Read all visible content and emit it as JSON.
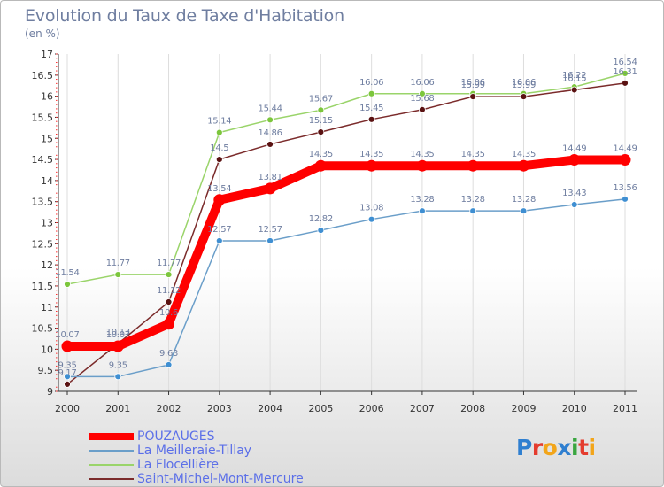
{
  "header": {
    "title": "Evolution du Taux de Taxe d'Habitation",
    "unit": "(en %)"
  },
  "logo": {
    "text": "Proxiti"
  },
  "colors": {
    "axis": "#333333",
    "grid": "#dddddd",
    "text": "#5b6fe8"
  },
  "chart_data": {
    "type": "line",
    "title": "Evolution du Taux de Taxe d'Habitation",
    "ylabel": "(en %)",
    "xlabel": "",
    "x": [
      "2000",
      "2001",
      "2002",
      "2003",
      "2004",
      "2005",
      "2006",
      "2007",
      "2008",
      "2009",
      "2010",
      "2011"
    ],
    "ylim": [
      9,
      17
    ],
    "yticks": [
      "9",
      "9.5",
      "10",
      "10.5",
      "11",
      "11.5",
      "12",
      "12.5",
      "13",
      "13.5",
      "14",
      "14.5",
      "15",
      "15.5",
      "16",
      "16.5",
      "17"
    ],
    "grid": "vertical",
    "legend_position": "bottom-left",
    "series": [
      {
        "name": "POUZAUGES",
        "color": "#ff0000",
        "bold": true,
        "values": [
          10.07,
          10.07,
          10.6,
          13.54,
          13.81,
          14.35,
          14.35,
          14.35,
          14.35,
          14.35,
          14.49,
          14.49
        ],
        "labels": [
          "10.07",
          "10.07",
          "10.6",
          "13.54",
          "13.81",
          "14.35",
          "14.35",
          "14.35",
          "14.35",
          "14.35",
          "14.49",
          "14.49"
        ]
      },
      {
        "name": "La Meilleraie-Tillay",
        "color": "#6a9ec9",
        "marker": "#3f8fd2",
        "values": [
          9.35,
          9.35,
          9.63,
          12.57,
          12.57,
          12.82,
          13.08,
          13.28,
          13.28,
          13.28,
          13.43,
          13.56
        ],
        "labels": [
          "9.35",
          "9.35",
          "9.63",
          "12.57",
          "12.57",
          "12.82",
          "13.08",
          "13.28",
          "13.28",
          "13.28",
          "13.43",
          "13.56"
        ]
      },
      {
        "name": "La Flocellière",
        "color": "#9ad46a",
        "marker": "#7cc63c",
        "values": [
          11.54,
          11.77,
          11.77,
          15.14,
          15.44,
          15.67,
          16.06,
          16.06,
          16.06,
          16.06,
          16.22,
          16.54
        ],
        "labels": [
          "11.54",
          "11.77",
          "11.77",
          "15.14",
          "15.44",
          "15.67",
          "16.06",
          "16.06",
          "16.06",
          "16.06",
          "16.22",
          "16.54"
        ]
      },
      {
        "name": "Saint-Michel-Mont-Mercure",
        "color": "#7b2b2b",
        "marker": "#5a1212",
        "values": [
          9.17,
          10.13,
          11.12,
          14.5,
          14.86,
          15.15,
          15.45,
          15.68,
          15.99,
          15.99,
          16.15,
          16.31
        ],
        "labels": [
          "9.17",
          "10.13",
          "11.12",
          "14.5",
          "14.86",
          "15.15",
          "15.45",
          "15.68",
          "15.99",
          "15.99",
          "16.15",
          "16.31"
        ]
      }
    ]
  }
}
